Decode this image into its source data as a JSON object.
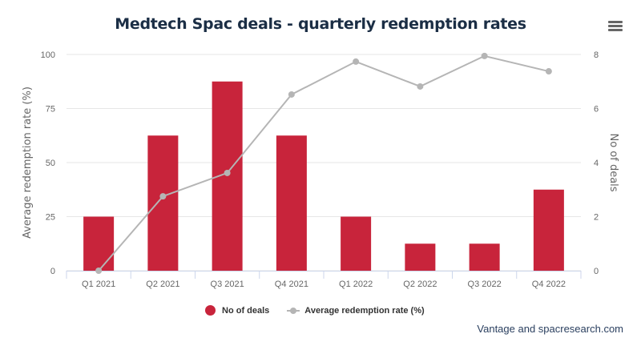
{
  "chart_data": {
    "type": "bar+line",
    "title": "Medtech Spac deals - quarterly redemption rates",
    "categories": [
      "Q1 2021",
      "Q2 2021",
      "Q3 2021",
      "Q4 2021",
      "Q1 2022",
      "Q2 2022",
      "Q3 2022",
      "Q4 2022"
    ],
    "series": [
      {
        "name": "No of deals",
        "type": "bar",
        "axis": "right",
        "color": "#c8243b",
        "values": [
          2,
          5,
          7,
          5,
          2,
          1,
          1,
          3
        ]
      },
      {
        "name": "Average redemption rate (%)",
        "type": "line",
        "axis": "left",
        "color": "#b5b5b5",
        "values": [
          0,
          34.4,
          45.2,
          81.5,
          96.7,
          85.2,
          99.3,
          92.2
        ]
      }
    ],
    "left_axis": {
      "label": "Average redemption rate (%)",
      "ylim": [
        0,
        100
      ],
      "ticks": [
        "0",
        "25",
        "50",
        "75",
        "100"
      ]
    },
    "right_axis": {
      "label": "No of deals",
      "ylim": [
        0,
        8
      ],
      "ticks": [
        "0",
        "2",
        "4",
        "6",
        "8"
      ]
    },
    "grid": true,
    "legend_position": "bottom-center",
    "source": "Vantage and spacresearch.com"
  },
  "menu": {
    "icon": "hamburger-menu-icon"
  }
}
